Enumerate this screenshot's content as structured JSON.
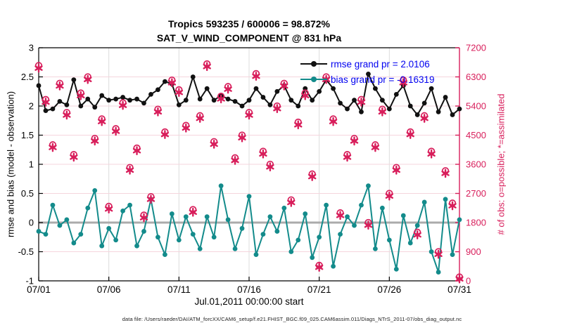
{
  "title": {
    "line1": "Tropics 593235 / 600006 = 98.872%",
    "line2": "SAT_V_WIND_COMPONENT @ 831 hPa"
  },
  "footer": {
    "data_file": "data file: /Users/raeder/DAI/ATM_forcXX/CAM6_setup/f.e21.FHIST_BGC.f09_025.CAM6assim.011/Diags_NTrS_2011-07/obs_diag_output.nc"
  },
  "colors": {
    "rmse": "#111111",
    "bias": "#138b8b",
    "obs": "#d81e5b",
    "legend_text": "#0000f0",
    "grid_horizontal": "#f5d5dd",
    "grid_vertical": "#dcdcdc",
    "zero_line": "#ababab",
    "axis_black": "#000000"
  },
  "chart_data": {
    "type": "line",
    "title": "Tropics 593235 / 600006 = 98.872%",
    "subtitle": "SAT_V_WIND_COMPONENT @ 831 hPa",
    "xlabel": "Jul.01,2011 00:00:00 start",
    "ylabel_left": "rmse and bias (model - observation)",
    "ylabel_right": "# of obs: o=possible; *=assimilated",
    "legend_position": "top-right",
    "grid": true,
    "xlim_days": [
      1,
      31
    ],
    "x_tick_days": [
      1,
      6,
      11,
      16,
      21,
      26,
      31
    ],
    "x_tick_labels": [
      "07/01",
      "07/06",
      "07/11",
      "07/16",
      "07/21",
      "07/26",
      "07/31"
    ],
    "ylim_left": [
      -1,
      3
    ],
    "yticks_left": [
      3,
      2.5,
      2,
      1.5,
      1,
      0.5,
      0,
      -0.5,
      -1
    ],
    "ylim_right": [
      0,
      7200
    ],
    "yticks_right": [
      7200,
      6300,
      5400,
      4500,
      3600,
      2700,
      1800,
      900,
      0
    ],
    "zero_reference_line": 0,
    "x_days": [
      1,
      1.5,
      2,
      2.5,
      3,
      3.5,
      4,
      4.5,
      5,
      5.5,
      6,
      6.5,
      7,
      7.5,
      8,
      8.5,
      9,
      9.5,
      10,
      10.5,
      11,
      11.5,
      12,
      12.5,
      13,
      13.5,
      14,
      14.5,
      15,
      15.5,
      16,
      16.5,
      17,
      17.5,
      18,
      18.5,
      19,
      19.5,
      20,
      20.5,
      21,
      21.5,
      22,
      22.5,
      23,
      23.5,
      24,
      24.5,
      25,
      25.5,
      26,
      26.5,
      27,
      27.5,
      28,
      28.5,
      29,
      29.5,
      30,
      30.5,
      31
    ],
    "series": [
      {
        "name": "rmse",
        "legend_label": "rmse grand pr = 2.0106",
        "grand_value": 2.0106,
        "axis": "left",
        "marker": "dot",
        "values": [
          2.35,
          1.92,
          1.95,
          2.08,
          2.02,
          2.45,
          2.0,
          2.12,
          1.98,
          2.18,
          2.1,
          2.12,
          2.15,
          2.1,
          2.12,
          2.05,
          2.2,
          2.28,
          2.42,
          2.38,
          2.02,
          2.1,
          2.5,
          2.12,
          2.3,
          2.1,
          2.18,
          2.12,
          2.08,
          2.0,
          2.1,
          2.3,
          2.15,
          2.02,
          2.25,
          2.35,
          2.1,
          2.0,
          2.3,
          2.1,
          2.25,
          2.45,
          2.3,
          2.05,
          1.95,
          2.1,
          1.9,
          2.55,
          2.3,
          2.1,
          1.95,
          2.2,
          2.35,
          2.0,
          1.85,
          2.05,
          2.3,
          1.9,
          2.15,
          1.85,
          1.95
        ]
      },
      {
        "name": "bias",
        "legend_label": "bias grand pr = -0.16319",
        "grand_value": -0.16319,
        "axis": "left",
        "marker": "dot",
        "values": [
          -0.15,
          -0.2,
          0.3,
          -0.05,
          0.05,
          -0.35,
          -0.2,
          0.25,
          0.55,
          -0.4,
          -0.1,
          -0.3,
          0.2,
          0.3,
          -0.4,
          -0.15,
          0.4,
          -0.25,
          -0.55,
          0.15,
          -0.3,
          0.1,
          -0.2,
          -0.45,
          0.1,
          -0.25,
          0.63,
          0.05,
          -0.45,
          -0.1,
          0.45,
          -0.55,
          -0.2,
          0.1,
          -0.15,
          0.25,
          -0.5,
          -0.3,
          0.15,
          -0.6,
          -0.25,
          0.3,
          -0.75,
          -0.2,
          0.1,
          -0.05,
          0.3,
          0.63,
          -0.45,
          0.25,
          -0.3,
          -0.8,
          0.12,
          -0.35,
          -0.05,
          0.35,
          -0.5,
          -0.85,
          0.4,
          -0.55,
          0.05
        ]
      },
      {
        "name": "obs_possible",
        "legend_label": "",
        "axis": "right",
        "marker": "circle",
        "values": [
          6650,
          5600,
          4200,
          6100,
          5200,
          3900,
          5800,
          6300,
          4400,
          5000,
          2300,
          4700,
          5500,
          3500,
          4100,
          2030,
          2600,
          5300,
          4600,
          6200,
          5900,
          4800,
          2200,
          5100,
          6700,
          4300,
          5700,
          6000,
          3800,
          4500,
          5200,
          6400,
          4000,
          3600,
          5400,
          6100,
          2500,
          4900,
          5800,
          3300,
          480,
          6300,
          5000,
          2100,
          3900,
          4400,
          5600,
          1800,
          4200,
          5300,
          2700,
          3500,
          6200,
          4600,
          1500,
          5100,
          4000,
          900,
          3400,
          2400,
          120
        ]
      },
      {
        "name": "obs_assimilated",
        "legend_label": "",
        "axis": "right",
        "marker": "asterisk",
        "values": [
          6570,
          5520,
          4120,
          6020,
          5120,
          3820,
          5720,
          6220,
          4320,
          4920,
          2220,
          4620,
          5420,
          3420,
          4020,
          1950,
          2520,
          5220,
          4520,
          6120,
          5820,
          4720,
          2120,
          5020,
          6620,
          4220,
          5620,
          5920,
          3720,
          4420,
          5120,
          6320,
          3920,
          3520,
          5320,
          6020,
          2420,
          4820,
          5720,
          3220,
          420,
          6220,
          4920,
          2020,
          3820,
          4320,
          5520,
          1720,
          4120,
          5220,
          2620,
          3420,
          6120,
          4520,
          1420,
          5020,
          3920,
          820,
          3320,
          2320,
          60
        ]
      }
    ]
  }
}
